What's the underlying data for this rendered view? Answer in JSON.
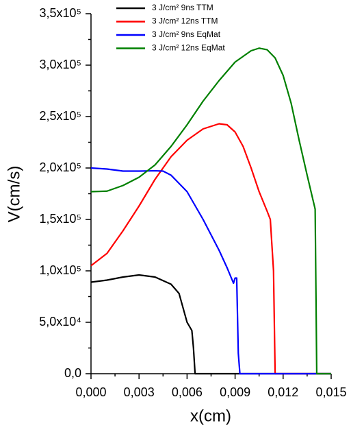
{
  "chart_data": {
    "type": "line",
    "xlabel": "x(cm)",
    "ylabel": "V(cm/s)",
    "xlim": [
      0,
      0.015
    ],
    "xticks": [
      {
        "value": 0,
        "label": "0,000"
      },
      {
        "value": 0.003,
        "label": "0,003"
      },
      {
        "value": 0.006,
        "label": "0,006"
      },
      {
        "value": 0.009,
        "label": "0,009"
      },
      {
        "value": 0.012,
        "label": "0,012"
      },
      {
        "value": 0.015,
        "label": "0,015"
      }
    ],
    "ylim": [
      0,
      350000
    ],
    "yticks": [
      {
        "value": 0,
        "label": "0,0"
      },
      {
        "value": 50000,
        "label": "5,0x10⁴"
      },
      {
        "value": 100000,
        "label": "1,0x10⁵"
      },
      {
        "value": 150000,
        "label": "1,5x10⁵"
      },
      {
        "value": 200000,
        "label": "2,0x10⁵"
      },
      {
        "value": 250000,
        "label": "2,5x10⁵"
      },
      {
        "value": 300000,
        "label": "3,0x10⁵"
      },
      {
        "value": 350000,
        "label": "3,5x10⁵"
      }
    ],
    "series": [
      {
        "name": "3 J/cm² 9ns TTM",
        "color": "#000000",
        "x": [
          0,
          0.001,
          0.002,
          0.003,
          0.004,
          0.005,
          0.0055,
          0.006,
          0.0063,
          0.0064,
          0.0065,
          0.015
        ],
        "values": [
          89000,
          91000,
          94000,
          96000,
          94000,
          87000,
          78000,
          50000,
          42000,
          25000,
          0,
          0
        ]
      },
      {
        "name": "3 J/cm² 12ns TTM",
        "color": "#ff0000",
        "x": [
          0,
          0.001,
          0.002,
          0.003,
          0.004,
          0.005,
          0.006,
          0.007,
          0.008,
          0.0085,
          0.009,
          0.0095,
          0.01,
          0.0105,
          0.011,
          0.0112,
          0.0114,
          0.0115,
          0.015
        ],
        "values": [
          105000,
          117000,
          139000,
          163000,
          189000,
          211000,
          227000,
          238000,
          243000,
          242000,
          235000,
          221000,
          200000,
          177000,
          158000,
          150000,
          100000,
          0,
          0
        ]
      },
      {
        "name": "3 J/cm² 9ns EqMat",
        "color": "#0000ff",
        "x": [
          0,
          0.001,
          0.002,
          0.003,
          0.004,
          0.0045,
          0.005,
          0.006,
          0.007,
          0.008,
          0.0085,
          0.0089,
          0.009,
          0.0091,
          0.0092,
          0.0093,
          0.015
        ],
        "values": [
          200000,
          199000,
          197000,
          197000,
          197300,
          197000,
          193000,
          177000,
          150000,
          120000,
          103000,
          88000,
          93000,
          93000,
          20000,
          0,
          0
        ]
      },
      {
        "name": "3 J/cm² 12ns EqMat",
        "color": "#008000",
        "x": [
          0,
          0.001,
          0.002,
          0.003,
          0.004,
          0.005,
          0.006,
          0.007,
          0.008,
          0.009,
          0.01,
          0.0105,
          0.011,
          0.0115,
          0.012,
          0.0125,
          0.013,
          0.0135,
          0.014,
          0.0141,
          0.015
        ],
        "values": [
          177000,
          177500,
          183000,
          191000,
          203000,
          221000,
          242000,
          265000,
          285000,
          303000,
          314000,
          316500,
          315000,
          307000,
          290000,
          263000,
          227000,
          193000,
          160000,
          0,
          0
        ]
      }
    ]
  }
}
